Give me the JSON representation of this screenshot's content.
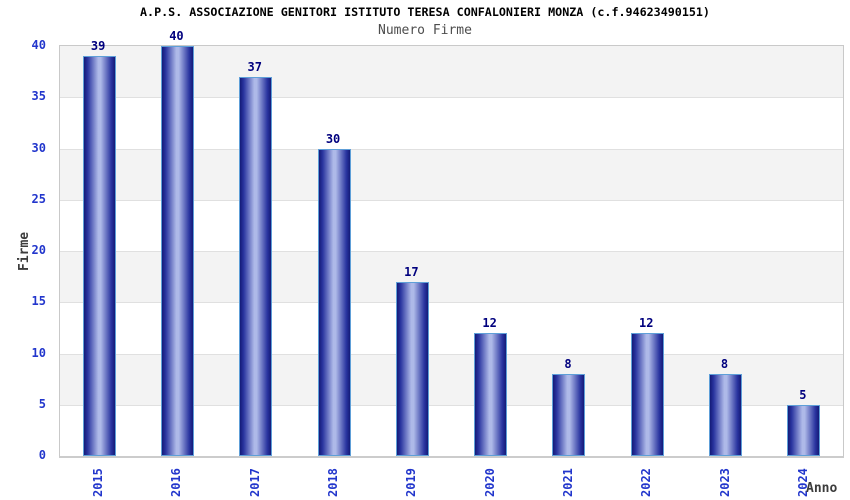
{
  "chart_data": {
    "type": "bar",
    "title": "A.P.S. ASSOCIAZIONE GENITORI ISTITUTO TERESA CONFALONIERI MONZA (c.f.94623490151)",
    "subtitle": "Numero Firme",
    "categories": [
      "2015",
      "2016",
      "2017",
      "2018",
      "2019",
      "2020",
      "2021",
      "2022",
      "2023",
      "2024"
    ],
    "values": [
      39,
      40,
      37,
      30,
      17,
      12,
      8,
      12,
      8,
      5
    ],
    "bar_value_labels": [
      "39",
      "40",
      "37",
      "30",
      "17",
      "12",
      "8",
      "12",
      "8",
      "5"
    ],
    "xlabel": "Anno",
    "ylabel": "Firme",
    "ylim": [
      0,
      40
    ],
    "ytick_step": 5,
    "ytick_labels": [
      "0",
      "5",
      "10",
      "15",
      "20",
      "25",
      "30",
      "35",
      "40"
    ],
    "legend": "none",
    "grid": "horizontal-bands-alternating",
    "x_tick_rotation_deg": 90,
    "colors": {
      "title_text": "#000000",
      "subtitle_text": "#4d4d4d",
      "axis_title_text": "#3c3c3c",
      "tick_label_blue": "#2236cc",
      "value_label_navy": "#00007e",
      "bar_edge": "#141a78",
      "bar_shade": "#2a35a0",
      "bar_highlight": "#aeb9e8",
      "bar_border": "#5e9fd8",
      "band_fill": "#f3f3f3",
      "band_alt_fill": "#ffffff",
      "grid_line": "#e0e0e0",
      "plot_border": "#c9c9c9",
      "axis_line": "#cccccc",
      "background": "#ffffff"
    }
  }
}
